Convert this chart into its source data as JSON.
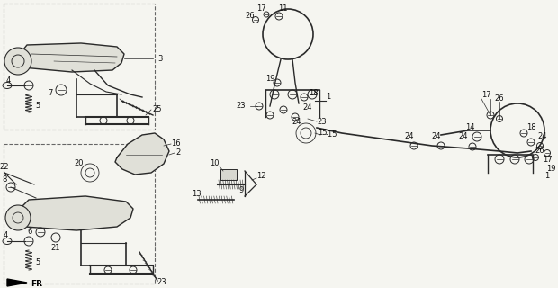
{
  "background": "#f5f5f0",
  "lc": "#2a2a2a",
  "figsize": [
    6.2,
    3.2
  ],
  "dpi": 100
}
